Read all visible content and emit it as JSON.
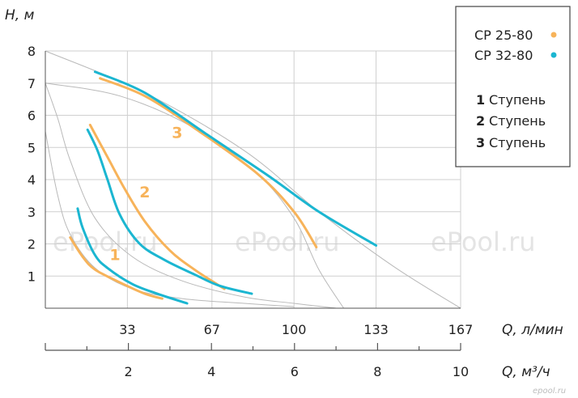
{
  "chart_data": {
    "type": "line",
    "ylabel": "H, м",
    "xlabel": "Q, л/мин",
    "xlabel2": "Q, м³/ч",
    "ylim": [
      0,
      8
    ],
    "xlim": [
      0,
      167
    ],
    "x2lim": [
      0,
      10
    ],
    "yticks": [
      "1",
      "2",
      "3",
      "4",
      "5",
      "6",
      "7",
      "8"
    ],
    "xticks": [
      {
        "value": 33,
        "label": "33"
      },
      {
        "value": 67,
        "label": "67"
      },
      {
        "value": 100,
        "label": "100"
      },
      {
        "value": 133,
        "label": "133"
      },
      {
        "value": 167,
        "label": "167"
      }
    ],
    "x2ticks": [
      {
        "value": 2,
        "label": "2"
      },
      {
        "value": 4,
        "label": "4"
      },
      {
        "value": 6,
        "label": "6"
      },
      {
        "value": 8,
        "label": "8"
      },
      {
        "value": 10,
        "label": "10"
      }
    ],
    "grid": true,
    "legend": {
      "placement": "top-right",
      "series": [
        {
          "label": "CP 25-80",
          "color": "#f7b35a"
        },
        {
          "label": "CP 32-80",
          "color": "#1bb6d1"
        }
      ],
      "stages": [
        {
          "num": "1",
          "label": "Ступень"
        },
        {
          "num": "2",
          "label": "Ступень"
        },
        {
          "num": "3",
          "label": "Ступень"
        }
      ]
    },
    "stage_labels": [
      {
        "text": "1",
        "x": 28,
        "y": 1.5
      },
      {
        "text": "2",
        "x": 40,
        "y": 3.45
      },
      {
        "text": "3",
        "x": 53,
        "y": 5.3
      }
    ],
    "reference_curves": [
      [
        [
          0,
          5.5
        ],
        [
          5,
          3.5
        ],
        [
          10,
          2.3
        ],
        [
          20,
          1.25
        ],
        [
          35,
          0.6
        ],
        [
          55,
          0.3
        ],
        [
          80,
          0.15
        ],
        [
          100,
          0.05
        ]
      ],
      [
        [
          0,
          7
        ],
        [
          5,
          5.9
        ],
        [
          10,
          4.6
        ],
        [
          20,
          2.8
        ],
        [
          35,
          1.6
        ],
        [
          55,
          0.85
        ],
        [
          80,
          0.35
        ],
        [
          100,
          0.15
        ],
        [
          117,
          0
        ]
      ],
      [
        [
          0,
          8
        ],
        [
          40,
          6.7
        ],
        [
          80,
          4.9
        ],
        [
          110,
          3.0
        ],
        [
          140,
          1.3
        ],
        [
          167,
          0
        ]
      ],
      [
        [
          0,
          7
        ],
        [
          30,
          6.6
        ],
        [
          60,
          5.6
        ],
        [
          85,
          4.2
        ],
        [
          100,
          2.8
        ],
        [
          110,
          1.2
        ],
        [
          120,
          0
        ]
      ]
    ],
    "series": [
      {
        "name": "CP 25-80",
        "stage": "1",
        "color": "#f7b35a",
        "points": [
          [
            10,
            2.2
          ],
          [
            15,
            1.6
          ],
          [
            20,
            1.2
          ],
          [
            30,
            0.8
          ],
          [
            40,
            0.45
          ],
          [
            47,
            0.3
          ]
        ]
      },
      {
        "name": "CP 32-80",
        "stage": "1",
        "color": "#1bb6d1",
        "points": [
          [
            13,
            3.1
          ],
          [
            15,
            2.5
          ],
          [
            20,
            1.65
          ],
          [
            25,
            1.25
          ],
          [
            35,
            0.75
          ],
          [
            45,
            0.45
          ],
          [
            57,
            0.15
          ]
        ]
      },
      {
        "name": "CP 25-80",
        "stage": "2",
        "color": "#f7b35a",
        "points": [
          [
            18,
            5.7
          ],
          [
            25,
            4.7
          ],
          [
            32,
            3.7
          ],
          [
            40,
            2.7
          ],
          [
            50,
            1.8
          ],
          [
            60,
            1.2
          ],
          [
            72,
            0.6
          ]
        ]
      },
      {
        "name": "CP 32-80",
        "stage": "2",
        "color": "#1bb6d1",
        "points": [
          [
            17,
            5.55
          ],
          [
            21,
            4.9
          ],
          [
            25,
            4.0
          ],
          [
            30,
            2.9
          ],
          [
            38,
            2.0
          ],
          [
            48,
            1.5
          ],
          [
            60,
            1.05
          ],
          [
            70,
            0.7
          ],
          [
            83,
            0.45
          ]
        ]
      },
      {
        "name": "CP 25-80",
        "stage": "3",
        "color": "#f7b35a",
        "points": [
          [
            22,
            7.15
          ],
          [
            40,
            6.6
          ],
          [
            60,
            5.6
          ],
          [
            85,
            4.2
          ],
          [
            100,
            3.0
          ],
          [
            109,
            1.9
          ]
        ]
      },
      {
        "name": "CP 32-80",
        "stage": "3",
        "color": "#1bb6d1",
        "points": [
          [
            20,
            7.35
          ],
          [
            40,
            6.7
          ],
          [
            65,
            5.4
          ],
          [
            90,
            4.1
          ],
          [
            110,
            3.0
          ],
          [
            133,
            1.95
          ]
        ]
      }
    ]
  },
  "watermarks": [
    "ePool.ru",
    "ePool.ru",
    "ePool.ru"
  ],
  "corner_mark": "epool.ru"
}
